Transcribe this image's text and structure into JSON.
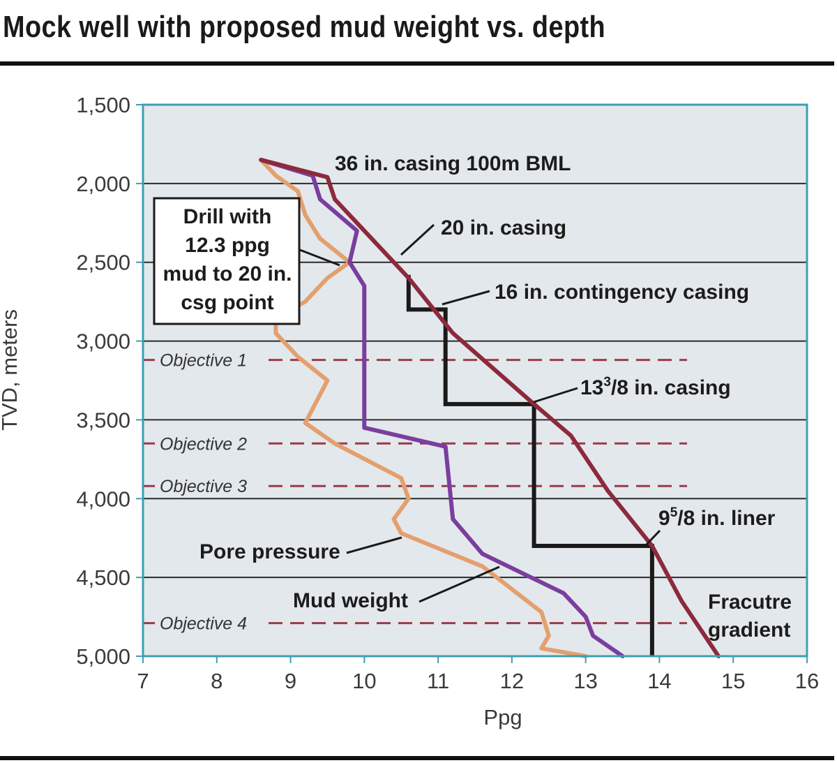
{
  "figure": {
    "title": "Mock well with proposed mud weight vs. depth"
  },
  "colors": {
    "plot_bg": "#e3e8ec",
    "plot_border": "#3d9fb3",
    "grid": "#2b2b2b",
    "pore": "#e3a06e",
    "mud": "#7a3e9e",
    "fracture": "#8c2a3c",
    "casing": "#1a1a1a",
    "objective": "#9a3b4a"
  },
  "chart_data": {
    "type": "line",
    "title": "Mock well with proposed mud weight vs. depth",
    "xlabel": "Ppg",
    "ylabel": "TVD, meters",
    "xlim": [
      7,
      16
    ],
    "ylim": [
      5000,
      1500
    ],
    "x_ticks": [
      "7",
      "8",
      "9",
      "10",
      "11",
      "12",
      "13",
      "14",
      "15",
      "16"
    ],
    "y_ticks": [
      "1,500",
      "2,000",
      "2,500",
      "3,000",
      "3,500",
      "4,000",
      "4,500",
      "5,000"
    ],
    "y_tick_values": [
      1500,
      2000,
      2500,
      3000,
      3500,
      4000,
      4500,
      5000
    ],
    "grid": "horizontal",
    "series": [
      {
        "name": "Pore pressure",
        "color": "#e3a06e",
        "points": [
          [
            8.6,
            1850
          ],
          [
            8.8,
            1950
          ],
          [
            9.1,
            2050
          ],
          [
            9.2,
            2200
          ],
          [
            9.4,
            2350
          ],
          [
            9.8,
            2500
          ],
          [
            9.5,
            2600
          ],
          [
            9.2,
            2750
          ],
          [
            8.8,
            2850
          ],
          [
            8.8,
            2950
          ],
          [
            9.1,
            3100
          ],
          [
            9.5,
            3250
          ],
          [
            9.2,
            3520
          ],
          [
            9.6,
            3650
          ],
          [
            10.5,
            3870
          ],
          [
            10.6,
            4000
          ],
          [
            10.4,
            4130
          ],
          [
            10.5,
            4220
          ],
          [
            11.6,
            4430
          ],
          [
            12.4,
            4720
          ],
          [
            12.5,
            4870
          ],
          [
            12.4,
            4950
          ],
          [
            13.0,
            5000
          ]
        ]
      },
      {
        "name": "Mud weight",
        "color": "#7a3e9e",
        "points": [
          [
            8.6,
            1850
          ],
          [
            9.3,
            1950
          ],
          [
            9.4,
            2100
          ],
          [
            9.9,
            2300
          ],
          [
            9.8,
            2500
          ],
          [
            10.0,
            2650
          ],
          [
            10.0,
            3550
          ],
          [
            11.1,
            3670
          ],
          [
            11.2,
            4130
          ],
          [
            11.6,
            4350
          ],
          [
            12.7,
            4600
          ],
          [
            13.0,
            4750
          ],
          [
            13.1,
            4870
          ],
          [
            13.5,
            5000
          ]
        ]
      },
      {
        "name": "Fracutre gradient",
        "color": "#8c2a3c",
        "points": [
          [
            8.6,
            1850
          ],
          [
            9.5,
            1960
          ],
          [
            9.6,
            2100
          ],
          [
            10.0,
            2300
          ],
          [
            10.6,
            2600
          ],
          [
            11.2,
            2950
          ],
          [
            12.3,
            3400
          ],
          [
            12.8,
            3600
          ],
          [
            13.3,
            3950
          ],
          [
            13.9,
            4300
          ],
          [
            14.3,
            4650
          ],
          [
            14.8,
            5000
          ]
        ]
      }
    ],
    "casing_program": {
      "color": "#1a1a1a",
      "points": [
        [
          10.6,
          2580
        ],
        [
          10.6,
          2800
        ],
        [
          11.1,
          2800
        ],
        [
          11.1,
          3400
        ],
        [
          12.3,
          3400
        ],
        [
          12.3,
          4300
        ],
        [
          13.9,
          4300
        ],
        [
          13.9,
          5000
        ]
      ]
    },
    "objectives": [
      {
        "label": "Objective 1",
        "depth": 3120
      },
      {
        "label": "Objective 2",
        "depth": 3650
      },
      {
        "label": "Objective 3",
        "depth": 3920
      },
      {
        "label": "Objective 4",
        "depth": 4790
      }
    ],
    "annotations": [
      {
        "id": "casing-36",
        "text": "36 in. casing 100m BML"
      },
      {
        "id": "casing-20",
        "text": "20 in. casing"
      },
      {
        "id": "casing-16",
        "text": "16 in. contingency casing"
      },
      {
        "id": "casing-13",
        "base": "13",
        "sup": "3",
        "rest": "/8 in. casing"
      },
      {
        "id": "liner-9",
        "base": "9",
        "sup": "5",
        "rest": "/8 in. liner"
      },
      {
        "id": "pore-label",
        "text": "Pore pressure"
      },
      {
        "id": "mud-label",
        "text": "Mud weight"
      },
      {
        "id": "frac-label",
        "lines": [
          "Fracutre",
          "gradient"
        ]
      },
      {
        "id": "drill-box",
        "lines": [
          "Drill with",
          "12.3 ppg",
          "mud to 20 in.",
          "csg point"
        ]
      }
    ]
  }
}
